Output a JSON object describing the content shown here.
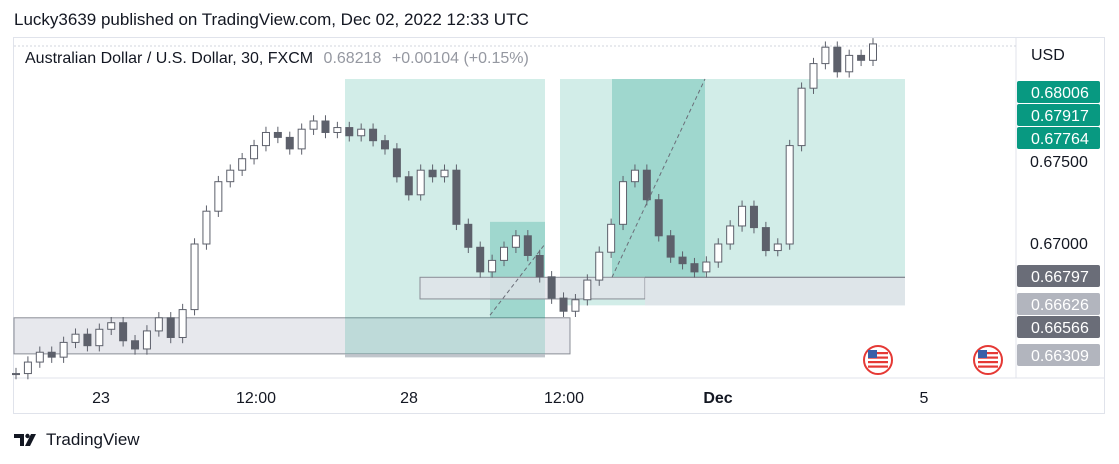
{
  "header": {
    "published_text": "Lucky3639 published on TradingView.com, Dec 02, 2022 12:33 UTC"
  },
  "symbol": {
    "name": "Australian Dollar / U.S. Dollar, 30, FXCM",
    "last": "0.68218",
    "change": "+0.00104 (+0.15%)"
  },
  "price_axis": {
    "currency": "USD",
    "ticks": [
      "0.67500",
      "0.67000"
    ],
    "labels": [
      {
        "text": "0.68006",
        "color": "#089981"
      },
      {
        "text": "0.67917",
        "color": "#089981"
      },
      {
        "text": "0.67764",
        "color": "#089981"
      },
      {
        "text": "0.66797",
        "color": "#6a6d78"
      },
      {
        "text": "0.66626",
        "color": "#b2b5be"
      },
      {
        "text": "0.66566",
        "color": "#6a6d78"
      },
      {
        "text": "0.66309",
        "color": "#b2b5be"
      }
    ]
  },
  "time_axis": {
    "labels": [
      "23",
      "12:00",
      "28",
      "12:00",
      "Dec",
      "5"
    ]
  },
  "footer": {
    "brand": "TradingView"
  },
  "chart_data": {
    "type": "candlestick",
    "symbol": "AUDUSD",
    "timeframe": "30",
    "y_unit": "USD",
    "y_ticks": [
      0.675,
      0.67
    ],
    "x_ticks": [
      "23",
      "12:00",
      "28",
      "12:00",
      "Dec",
      "5"
    ],
    "series": [
      {
        "values_approx_close": [
          0.6621,
          0.6628,
          0.6634,
          0.6631,
          0.664,
          0.6645,
          0.6638,
          0.6648,
          0.6652,
          0.6641,
          0.6636,
          0.6647,
          0.6655,
          0.6643,
          0.666,
          0.67,
          0.672,
          0.6738,
          0.6745,
          0.6752,
          0.676,
          0.6768,
          0.6765,
          0.6758,
          0.677,
          0.6775,
          0.6768,
          0.6771,
          0.6766,
          0.677,
          0.6763,
          0.6758,
          0.6741,
          0.673,
          0.6745,
          0.6741,
          0.6745,
          0.6712,
          0.6698,
          0.6683,
          0.669,
          0.6698,
          0.6705,
          0.6693,
          0.668,
          0.6667,
          0.6659,
          0.6666,
          0.6678,
          0.6695,
          0.6712,
          0.6738,
          0.6745,
          0.6727,
          0.6705,
          0.6692,
          0.6688,
          0.6683,
          0.6689,
          0.67,
          0.6711,
          0.6723,
          0.671,
          0.6696,
          0.67,
          0.676,
          0.6795,
          0.681,
          0.682,
          0.6805,
          0.6815,
          0.6812,
          0.6822
        ]
      }
    ],
    "zones": [
      {
        "kind": "range",
        "color": "#b2b5be",
        "from": 0.6643,
        "to": 0.6655
      },
      {
        "kind": "range",
        "color": "#b2b5be",
        "from": 0.66566,
        "to": 0.66626
      },
      {
        "kind": "range",
        "color": "#b2b5be",
        "from": 0.66626,
        "to": 0.66797
      },
      {
        "kind": "position",
        "color": "#089981",
        "from": 0.66309,
        "to": 0.68006
      },
      {
        "kind": "position",
        "color": "#089981",
        "from": 0.66626,
        "to": 0.67917
      }
    ],
    "events": [
      "us-flag",
      "us-flag"
    ]
  }
}
